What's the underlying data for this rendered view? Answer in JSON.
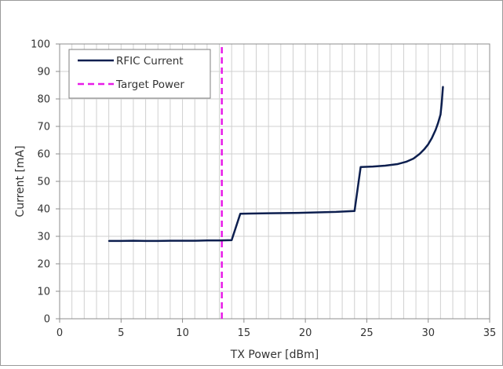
{
  "chart_data": {
    "type": "line",
    "title": "",
    "xlabel": "TX Power [dBm]",
    "ylabel": "Current [mA]",
    "xlim": [
      0,
      35
    ],
    "ylim": [
      0,
      100
    ],
    "x_ticks": [
      0,
      5,
      10,
      15,
      20,
      25,
      30,
      35
    ],
    "y_ticks": [
      0,
      10,
      20,
      30,
      40,
      50,
      60,
      70,
      80,
      90,
      100
    ],
    "grid": "on (vertical minor every 1 dBm, horizontal every 10 mA)",
    "legend_position": "top-left",
    "series": [
      {
        "name": "RFIC Current",
        "color": "#0d1f4f",
        "style": "solid",
        "x": [
          4.0,
          5.0,
          6.0,
          7.0,
          8.0,
          9.0,
          10.0,
          11.0,
          12.0,
          13.0,
          14.0,
          14.7,
          15.5,
          17.0,
          19.0,
          21.0,
          22.5,
          23.5,
          24.0,
          24.5,
          25.5,
          26.5,
          27.5,
          28.2,
          28.8,
          29.3,
          29.7,
          30.0,
          30.3,
          30.6,
          30.8,
          31.0,
          31.1,
          31.2
        ],
        "y": [
          28.3,
          28.3,
          28.4,
          28.3,
          28.3,
          28.4,
          28.4,
          28.4,
          28.5,
          28.5,
          28.6,
          38.2,
          38.3,
          38.4,
          38.5,
          38.7,
          38.9,
          39.1,
          39.2,
          55.2,
          55.4,
          55.7,
          56.3,
          57.1,
          58.3,
          60.0,
          61.8,
          63.5,
          65.8,
          68.7,
          71.2,
          74.3,
          78.5,
          84.5
        ]
      },
      {
        "name": "Target Power",
        "color": "#e81ce8",
        "style": "dashed",
        "x": [
          13.2,
          13.2
        ],
        "y": [
          0,
          100
        ]
      }
    ]
  }
}
